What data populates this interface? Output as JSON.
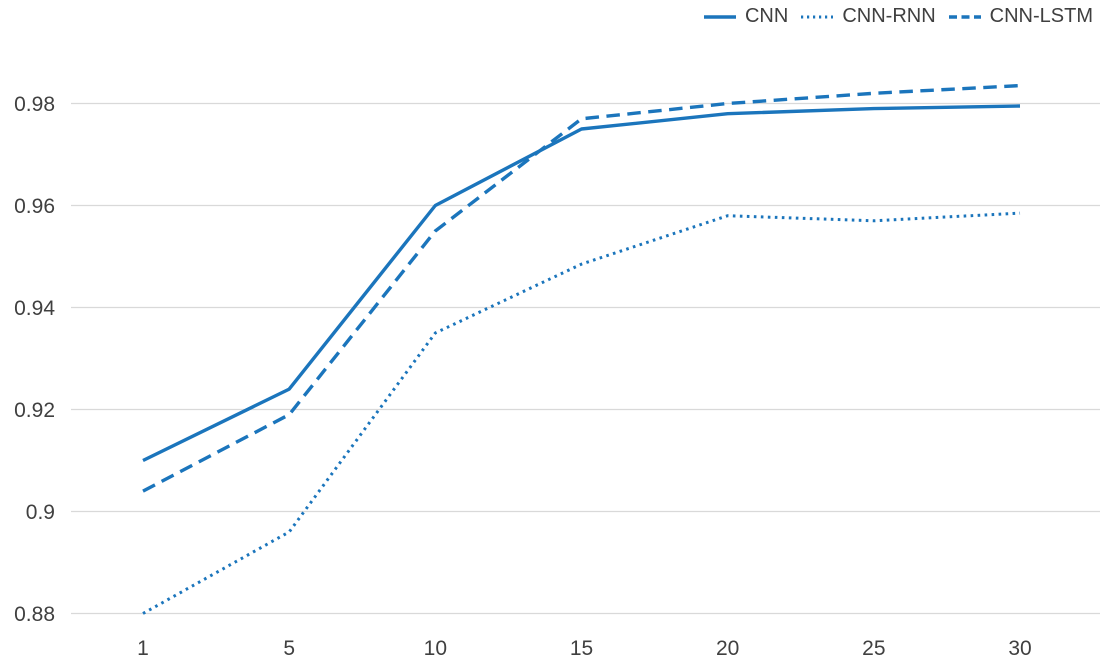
{
  "chart_data": {
    "type": "line",
    "title": "",
    "xlabel": "",
    "ylabel": "",
    "x": [
      1,
      5,
      10,
      15,
      20,
      25,
      30
    ],
    "x_tick_labels": [
      "1",
      "5",
      "10",
      "15",
      "20",
      "25",
      "30"
    ],
    "y_ticks": [
      0.88,
      0.9,
      0.92,
      0.94,
      0.96,
      0.98
    ],
    "y_tick_labels": [
      "0.88",
      "0.9",
      "0.92",
      "0.94",
      "0.96",
      "0.98"
    ],
    "ylim": [
      0.88,
      0.99
    ],
    "grid": "horizontal-only",
    "legend_position": "top-right",
    "series": [
      {
        "name": "CNN",
        "style": "solid",
        "values": [
          0.91,
          0.924,
          0.96,
          0.975,
          0.978,
          0.979,
          0.9795
        ]
      },
      {
        "name": "CNN-RNN",
        "style": "dotted",
        "values": [
          0.88,
          0.896,
          0.935,
          0.9485,
          0.958,
          0.957,
          0.9585
        ]
      },
      {
        "name": "CNN-LSTM",
        "style": "dashed",
        "values": [
          0.904,
          0.919,
          0.955,
          0.977,
          0.98,
          0.982,
          0.9835
        ]
      }
    ],
    "colors": {
      "line": "#1b75bc",
      "grid": "#d9d9d9",
      "text": "#404040"
    }
  }
}
